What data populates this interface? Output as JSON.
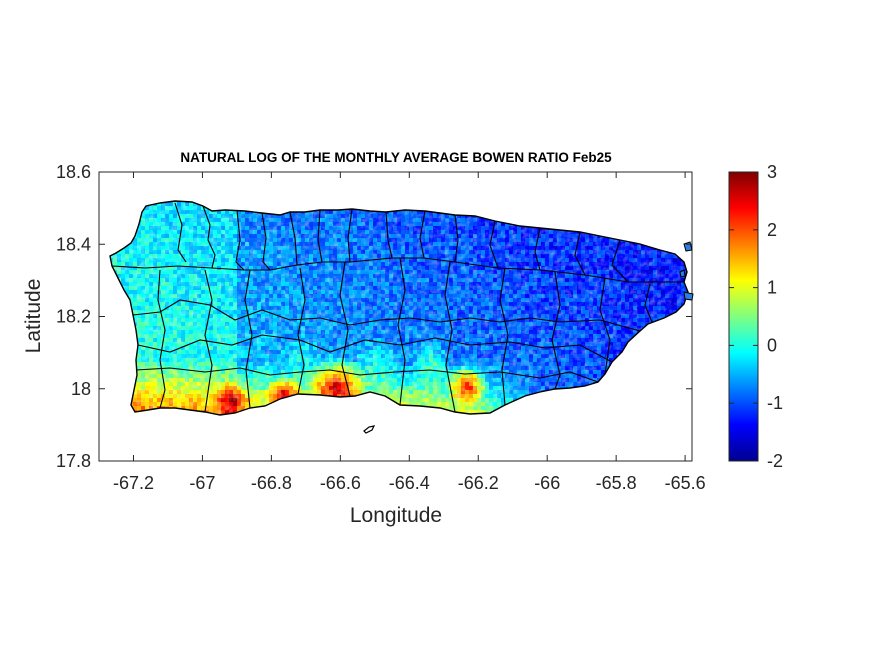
{
  "chart_data": {
    "type": "heatmap",
    "title": "NATURAL LOG OF THE MONTHLY AVERAGE BOWEN RATIO Feb25",
    "xlabel": "Longitude",
    "ylabel": "Latitude",
    "xlim": [
      -67.3,
      -65.58
    ],
    "ylim": [
      17.8,
      18.6
    ],
    "x_ticks": [
      -67.2,
      -67,
      -66.8,
      -66.6,
      -66.4,
      -66.2,
      -66,
      -65.8,
      -65.6
    ],
    "x_tick_labels": [
      "-67.2",
      "-67",
      "-66.8",
      "-66.6",
      "-66.4",
      "-66.2",
      "-66",
      "-65.8",
      "-65.6"
    ],
    "y_ticks": [
      17.8,
      18,
      18.2,
      18.4,
      18.6
    ],
    "y_tick_labels": [
      "17.8",
      "18",
      "18.2",
      "18.4",
      "18.6"
    ],
    "colorbar": {
      "colormap": "jet",
      "range": [
        -2,
        3
      ],
      "ticks": [
        -2,
        -1,
        0,
        1,
        2,
        3
      ],
      "tick_labels": [
        "-2",
        "-1",
        "0",
        "1",
        "2",
        "3"
      ]
    },
    "grid": false,
    "field_summary": {
      "north_and_east": "low values, about -1 to -0.5 (blue)",
      "central_and_west": "around 0 (cyan / light blue)",
      "south_coast": "high values, about 1 to 3 (yellow to dark red)"
    }
  },
  "colors": {
    "axis": "#262626",
    "boundary": "#000000",
    "background": "#ffffff"
  }
}
